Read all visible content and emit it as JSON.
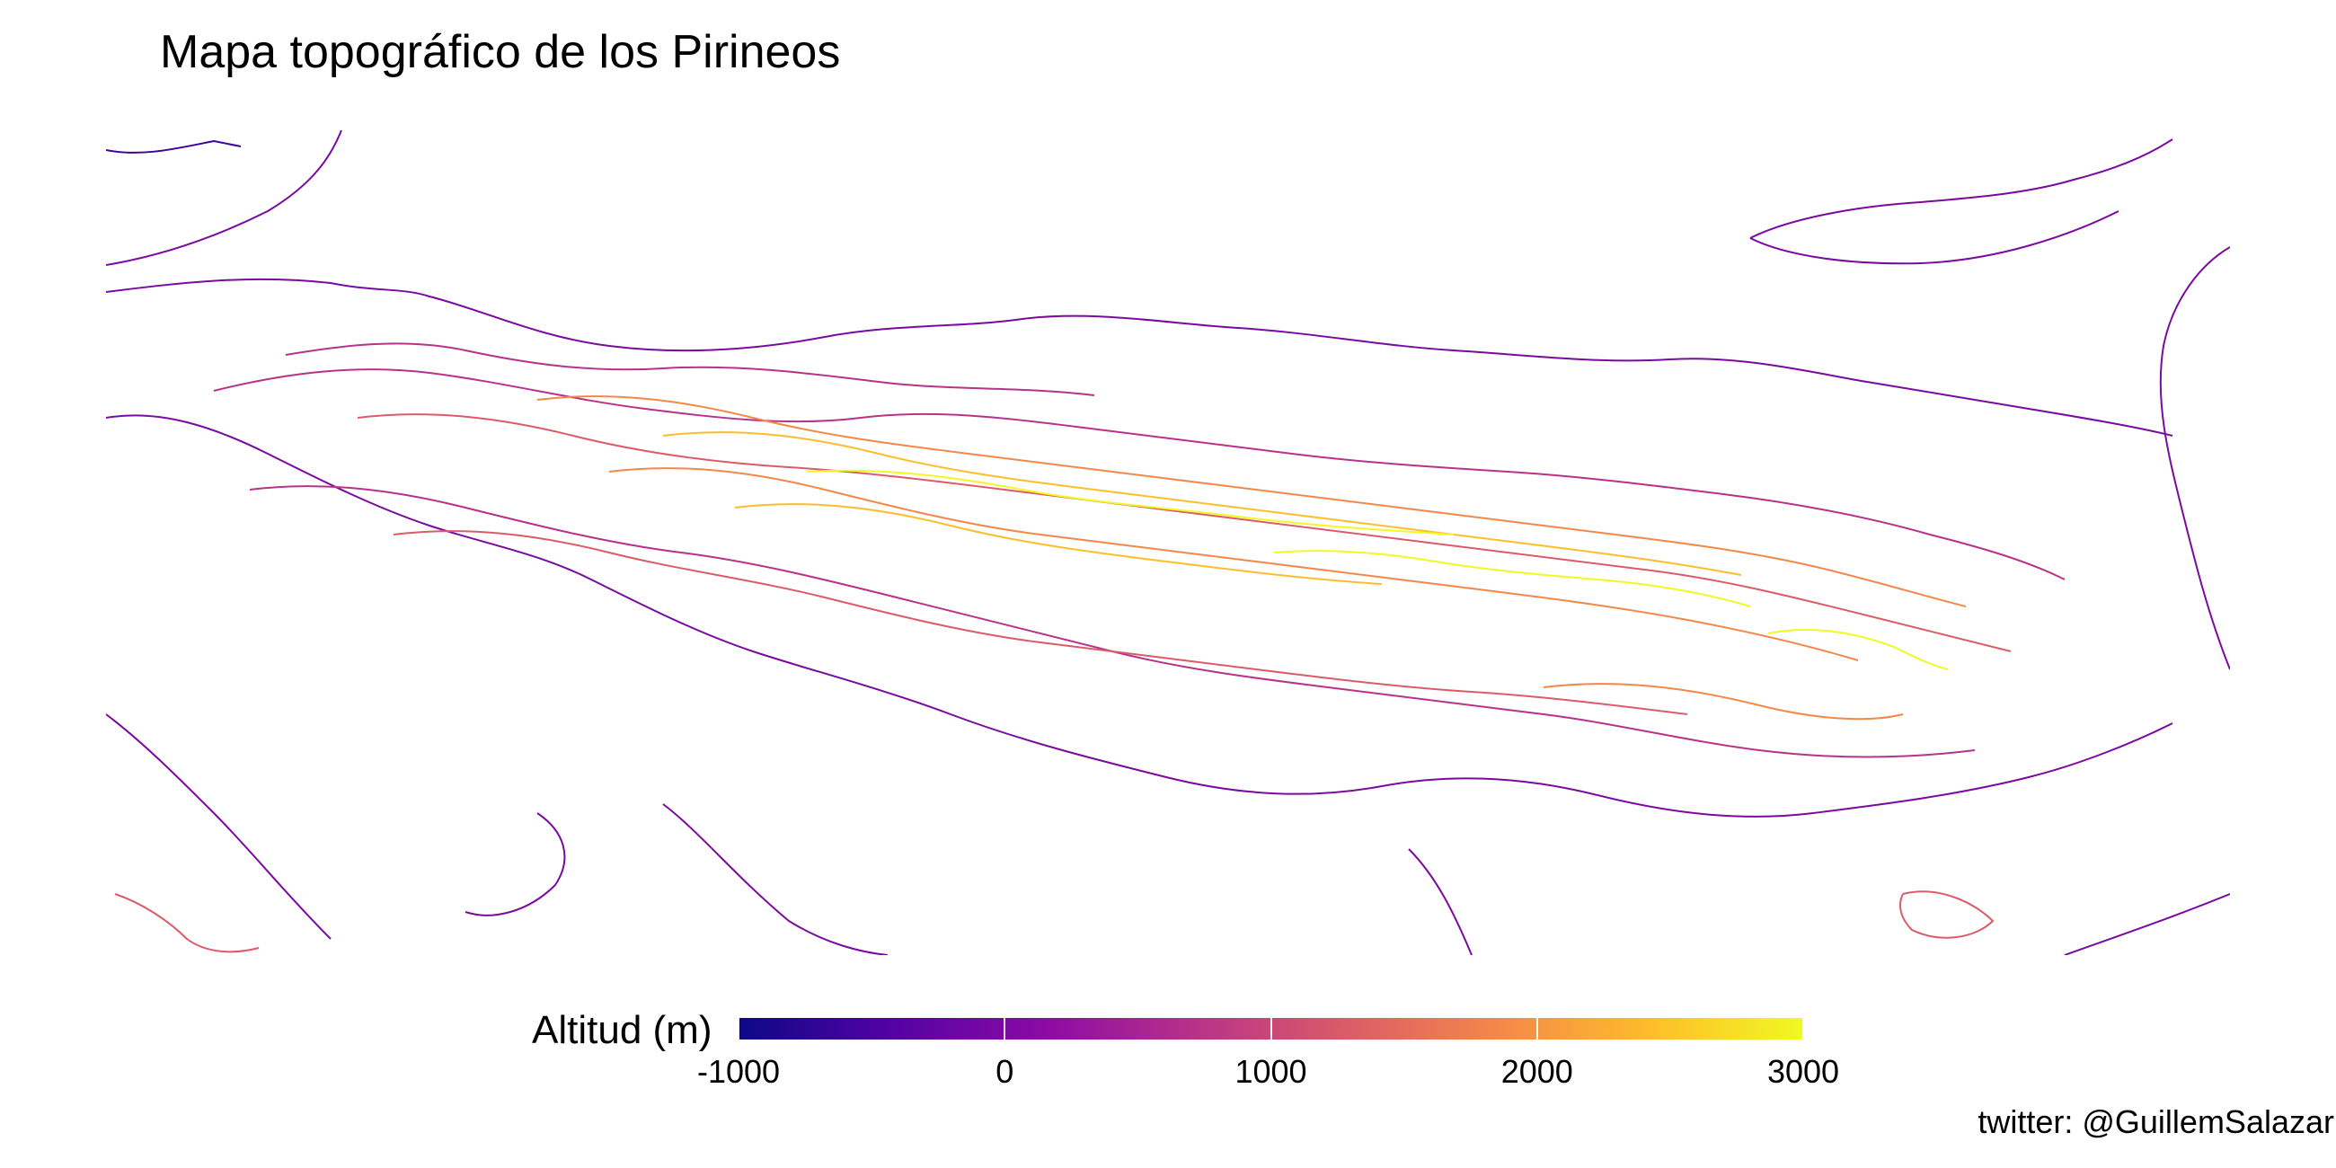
{
  "title": "Mapa topográfico de los Pirineos",
  "legend": {
    "title": "Altitud (m)",
    "min": -1000,
    "max": 3000,
    "ticks": [
      {
        "value": -1000,
        "label": "-1000"
      },
      {
        "value": 0,
        "label": "0"
      },
      {
        "value": 1000,
        "label": "1000"
      },
      {
        "value": 2000,
        "label": "2000"
      },
      {
        "value": 3000,
        "label": "3000"
      }
    ],
    "palette": [
      "#0d0887",
      "#5302a3",
      "#8b0aa5",
      "#b83289",
      "#db5c68",
      "#f48849",
      "#febd2a",
      "#f0f921"
    ]
  },
  "credit": "twitter: @GuillemSalazar"
}
